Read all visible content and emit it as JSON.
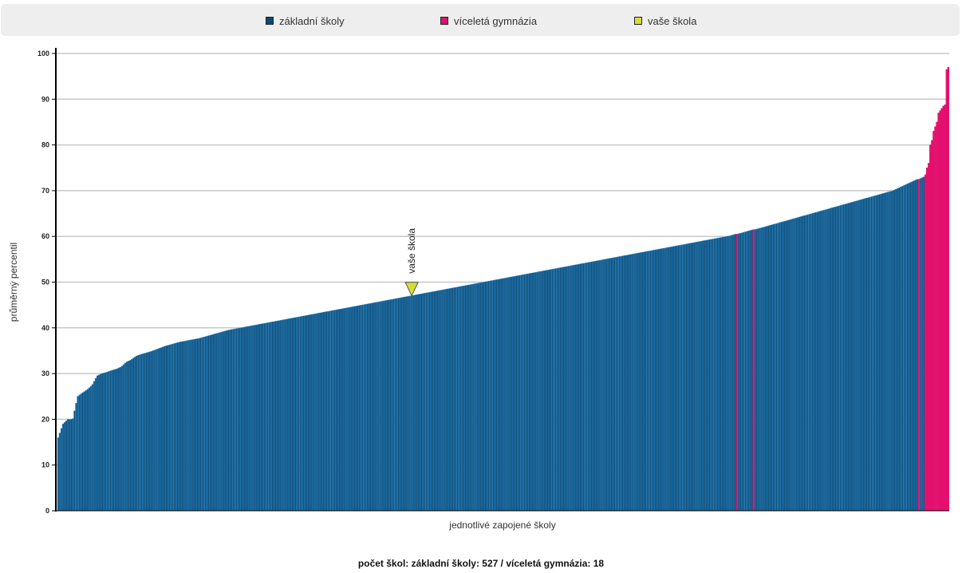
{
  "legend": {
    "items": [
      {
        "label": "základní školy",
        "color": "#0d4a73"
      },
      {
        "label": "víceletá gymnázia",
        "color": "#e3106e"
      },
      {
        "label": "vaše škola",
        "color": "#d6dc3a"
      }
    ]
  },
  "summary_text": "počet škol: základní školy: 527 / víceletá gymnázia: 18",
  "chart_data": {
    "type": "bar",
    "xlabel": "jednotlivé zapojené školy",
    "ylabel": "průměrný percentil",
    "ylim": [
      0,
      100
    ],
    "yticks": [
      0,
      10,
      20,
      30,
      40,
      50,
      60,
      70,
      80,
      90,
      100
    ],
    "grid": true,
    "legend_position": "top",
    "colors": {
      "zakladni_fill": "#0d4a73",
      "zakladni_stroke": "#2f8ed0",
      "gymnazium": "#e3106e",
      "vase_skola": "#d6dc3a"
    },
    "series": [
      {
        "name": "základní školy",
        "sorted_values": [
          16,
          19,
          20,
          20,
          25,
          25.8,
          26.5,
          27.5,
          29.5,
          30,
          30.3,
          30.7,
          31,
          31.5,
          32.5,
          33,
          33.8,
          34.2,
          34.5,
          34.8,
          35.2,
          35.6,
          36,
          36.3,
          36.6,
          36.9,
          37.1,
          37.3,
          37.5,
          37.7,
          38,
          38.3,
          38.6,
          38.9,
          39.2,
          39.5,
          39.7,
          39.9,
          40.1,
          40.3,
          40.5,
          40.7,
          40.9,
          41.1,
          41.3,
          41.5,
          41.7,
          41.9,
          42.1,
          42.3,
          42.5,
          42.7,
          42.9,
          43.1,
          43.3,
          43.5,
          43.7,
          43.9,
          44.1,
          44.3,
          44.5,
          44.7,
          44.9,
          45.1,
          45.3,
          45.5,
          45.7,
          45.9,
          46.1,
          46.3,
          46.5,
          46.7,
          46.9,
          47.1,
          47.3,
          47.5,
          47.7,
          47.9,
          48.1,
          48.3,
          48.5,
          48.7,
          48.9,
          49.1,
          49.3,
          49.5,
          49.7,
          49.9,
          50.1,
          50.3,
          50.5,
          50.7,
          50.9,
          51.1,
          51.3,
          51.5,
          51.7,
          51.9,
          52.1,
          52.3,
          52.5,
          52.7,
          52.9,
          53.1,
          53.3,
          53.5,
          53.7,
          53.9,
          54.1,
          54.3,
          54.5,
          54.7,
          54.9,
          55.1,
          55.3,
          55.5,
          55.7,
          55.9,
          56.1,
          56.3,
          56.5,
          56.7,
          56.9,
          57.1,
          57.3,
          57.5,
          57.7,
          57.9,
          58.1,
          58.3,
          58.5,
          58.7,
          58.9,
          59.1,
          59.3,
          59.5,
          59.7,
          59.9,
          60.1,
          60.4,
          60.7,
          61,
          61.3,
          61.6,
          61.9,
          62.2,
          62.5,
          62.8,
          63.1,
          63.4,
          63.7,
          64,
          64.3,
          64.6,
          64.9,
          65.2,
          65.5,
          65.8,
          66.1,
          66.4,
          66.7,
          67,
          67.3,
          67.6,
          67.9,
          68.2,
          68.5,
          68.8,
          69.1,
          69.4,
          69.7,
          70,
          70.5,
          71,
          71.5,
          72,
          72.5,
          73
        ],
        "count": 527
      },
      {
        "name": "víceletá gymnázia",
        "values": [
          60.5,
          61.5,
          72.5,
          73.5,
          75,
          76,
          80,
          81,
          83,
          84,
          85,
          87,
          87.5,
          88,
          88.5,
          88.8,
          96.5,
          97
        ],
        "count": 18
      },
      {
        "name": "vaše škola",
        "value": 47,
        "label": "vaše škola"
      }
    ]
  }
}
